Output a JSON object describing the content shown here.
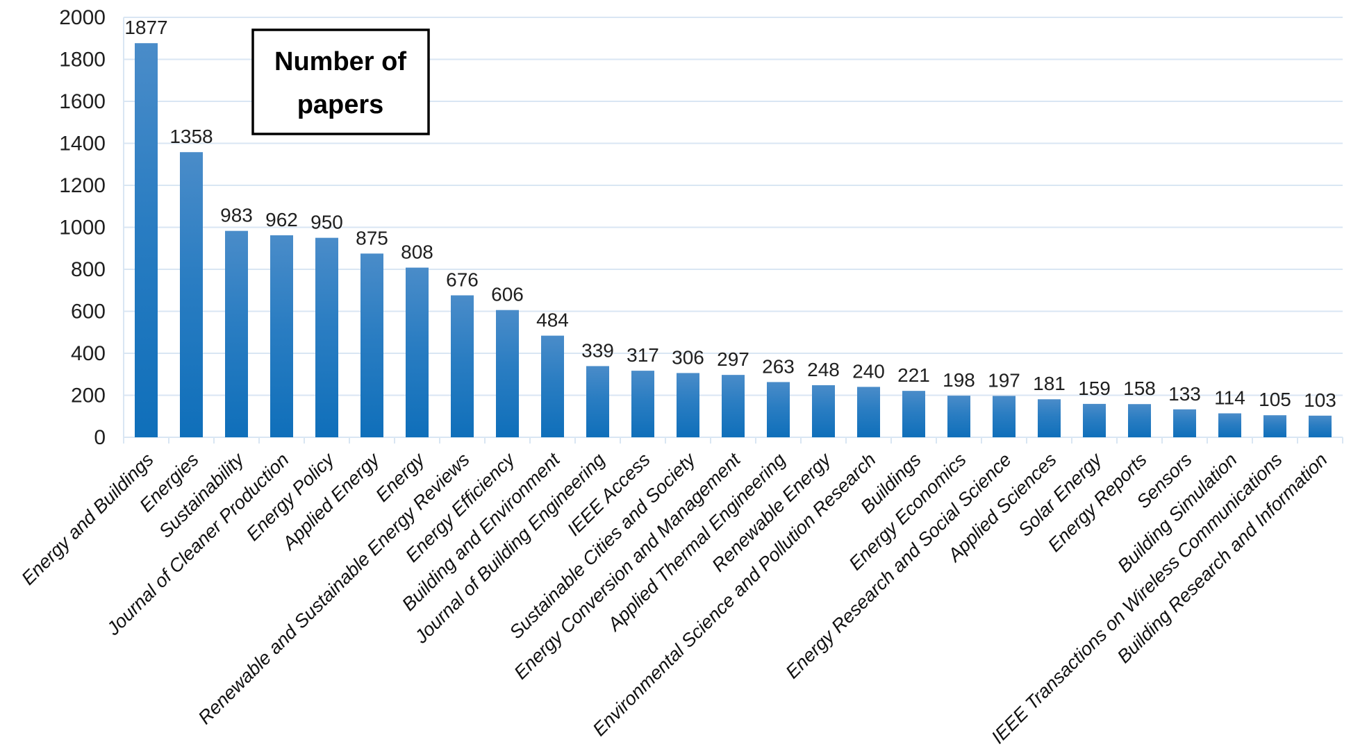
{
  "chart_data": {
    "type": "bar",
    "title": "Number of papers",
    "title_lines": [
      "Number of",
      "papers"
    ],
    "categories": [
      "Energy and Buildings",
      "Energies",
      "Sustainability",
      "Journal of Cleaner Production",
      "Energy Policy",
      "Applied Energy",
      "Energy",
      "Renewable and Sustainable Energy Reviews",
      "Energy Efficiency",
      "Building and Environment",
      "Journal of Building Engineering",
      "IEEE Access",
      "Sustainable Cities and Society",
      "Energy Conversion and Management",
      "Applied Thermal Engineering",
      "Renewable Energy",
      "Environmental Science and Pollution Research",
      "Buildings",
      "Energy Economics",
      "Energy Research and Social Science",
      "Applied Sciences",
      "Solar Energy",
      "Energy Reports",
      "Sensors",
      "Building Simulation",
      "IEEE Transactions on Wireless Communications",
      "Building Research and Information"
    ],
    "values": [
      1877,
      1358,
      983,
      962,
      950,
      875,
      808,
      676,
      606,
      484,
      339,
      317,
      306,
      297,
      263,
      248,
      240,
      221,
      198,
      197,
      181,
      159,
      158,
      133,
      114,
      105,
      103
    ],
    "xlabel": "",
    "ylabel": "",
    "ylim": [
      0,
      2000
    ],
    "ytick_step": 200,
    "yticks": [
      0,
      200,
      400,
      600,
      800,
      1000,
      1200,
      1400,
      1600,
      1800,
      2000
    ],
    "grid": true,
    "legend_position": "none",
    "bar_label_position": "above",
    "category_label_rotation_deg": -45,
    "colors": {
      "bar_gradient_top": "#4a8cc9",
      "bar_gradient_mid": "#2a7dc2",
      "bar_gradient_bottom": "#0f6fba",
      "gridline": "#d9e6f3",
      "text": "#1f1f1f",
      "title_border": "#000000",
      "background": "#ffffff"
    }
  }
}
